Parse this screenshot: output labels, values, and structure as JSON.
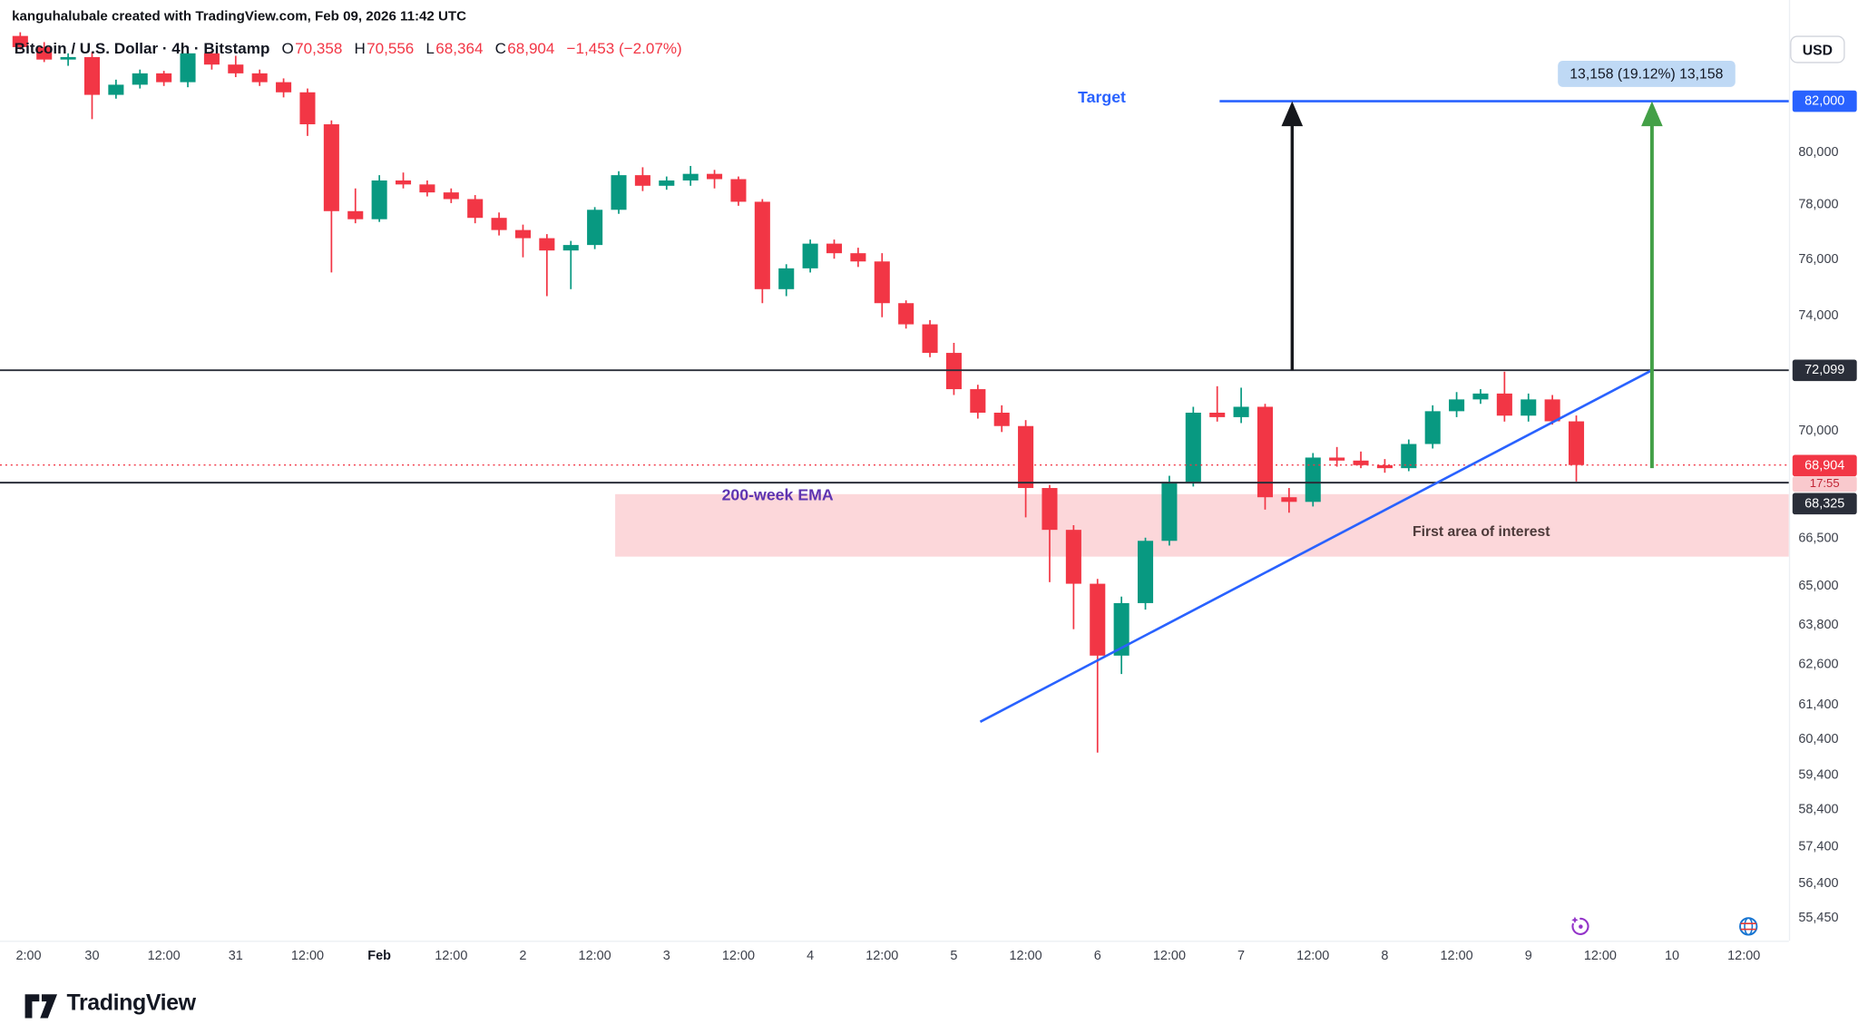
{
  "attribution": "kanguhalubale created with TradingView.com, Feb 09, 2026 11:42 UTC",
  "header": {
    "symbol_line": "Bitcoin / U.S. Dollar · 4h · Bitstamp",
    "ohlc": [
      {
        "k": "O",
        "v": "70,358"
      },
      {
        "k": "H",
        "v": "70,556"
      },
      {
        "k": "L",
        "v": "68,364"
      },
      {
        "k": "C",
        "v": "68,904"
      }
    ],
    "change": "−1,453 (−2.07%)",
    "currency": "USD"
  },
  "annotations": {
    "target_label": "Target",
    "target_badge": "82,000",
    "measure_label": "13,158 (19.12%) 13,158",
    "ema_label": "200-week EMA",
    "zone_label": "First area of interest",
    "level_upper_badge": "72,099",
    "level_lower_badge": "68,325",
    "last_price_badge": "68,904",
    "countdown": "17:55"
  },
  "price_axis_ticks": [
    "80,000",
    "78,000",
    "76,000",
    "74,000",
    "70,000",
    "66,500",
    "65,000",
    "63,800",
    "62,600",
    "61,400",
    "60,400",
    "59,400",
    "58,400",
    "57,400",
    "56,400",
    "55,450"
  ],
  "time_axis_ticks": [
    {
      "label": "2:00",
      "i": 0.35
    },
    {
      "label": "30",
      "i": 3
    },
    {
      "label": "12:00",
      "i": 6
    },
    {
      "label": "31",
      "i": 9
    },
    {
      "label": "12:00",
      "i": 12
    },
    {
      "label": "Feb",
      "i": 15,
      "bold": true
    },
    {
      "label": "12:00",
      "i": 18
    },
    {
      "label": "2",
      "i": 21
    },
    {
      "label": "12:00",
      "i": 24
    },
    {
      "label": "3",
      "i": 27
    },
    {
      "label": "12:00",
      "i": 30
    },
    {
      "label": "4",
      "i": 33
    },
    {
      "label": "12:00",
      "i": 36
    },
    {
      "label": "5",
      "i": 39
    },
    {
      "label": "12:00",
      "i": 42
    },
    {
      "label": "6",
      "i": 45
    },
    {
      "label": "12:00",
      "i": 48
    },
    {
      "label": "7",
      "i": 51
    },
    {
      "label": "12:00",
      "i": 54
    },
    {
      "label": "8",
      "i": 57
    },
    {
      "label": "12:00",
      "i": 60
    },
    {
      "label": "9",
      "i": 63
    },
    {
      "label": "12:00",
      "i": 66
    },
    {
      "label": "10",
      "i": 69
    },
    {
      "label": "12:00",
      "i": 72
    }
  ],
  "footer": {
    "logo_text": "TradingView"
  },
  "icons": {
    "boost": "sparkle-swirl",
    "globe": "globe"
  },
  "chart_data": {
    "type": "candlestick",
    "symbol": "Bitcoin / U.S. Dollar (BTCUSD)",
    "exchange": "Bitstamp",
    "interval": "4h",
    "scale": "log",
    "visible_price_range": [
      55450,
      84900
    ],
    "up_color": "#089981",
    "down_color": "#f23645",
    "candles": [
      [
        "Jan 29 12:00",
        84600,
        84750,
        84050,
        84150
      ],
      [
        "Jan 29 16:00",
        84150,
        84350,
        83550,
        83650
      ],
      [
        "Jan 29 20:00",
        83650,
        83900,
        83400,
        83750
      ],
      [
        "Jan 30 00:00",
        83750,
        83950,
        81300,
        82250
      ],
      [
        "Jan 30 04:00",
        82250,
        82850,
        82100,
        82650
      ],
      [
        "Jan 30 08:00",
        82650,
        83250,
        82500,
        83100
      ],
      [
        "Jan 30 12:00",
        83100,
        83200,
        82600,
        82750
      ],
      [
        "Jan 30 16:00",
        82750,
        84050,
        82550,
        83900
      ],
      [
        "Jan 30 20:00",
        83900,
        84000,
        83250,
        83450
      ],
      [
        "Jan 31 00:00",
        83450,
        83800,
        82950,
        83100
      ],
      [
        "Jan 31 04:00",
        83100,
        83250,
        82600,
        82750
      ],
      [
        "Jan 31 08:00",
        82750,
        82900,
        82150,
        82350
      ],
      [
        "Jan 31 12:00",
        82350,
        82500,
        80650,
        81100
      ],
      [
        "Jan 31 16:00",
        81100,
        81250,
        75550,
        77800
      ],
      [
        "Jan 31 20:00",
        77800,
        78650,
        77350,
        77500
      ],
      [
        "Feb 1 00:00",
        77500,
        79150,
        77400,
        78950
      ],
      [
        "Feb 1 04:00",
        78950,
        79250,
        78650,
        78800
      ],
      [
        "Feb 1 08:00",
        78800,
        78950,
        78350,
        78500
      ],
      [
        "Feb 1 12:00",
        78500,
        78650,
        78100,
        78250
      ],
      [
        "Feb 1 16:00",
        78250,
        78400,
        77350,
        77550
      ],
      [
        "Feb 1 20:00",
        77550,
        77750,
        76900,
        77100
      ],
      [
        "Feb 2 00:00",
        77100,
        77300,
        76100,
        76800
      ],
      [
        "Feb 2 04:00",
        76800,
        76950,
        74700,
        76350
      ],
      [
        "Feb 2 08:00",
        76350,
        76700,
        74950,
        76550
      ],
      [
        "Feb 2 12:00",
        76550,
        77950,
        76400,
        77850
      ],
      [
        "Feb 2 16:00",
        77850,
        79300,
        77700,
        79150
      ],
      [
        "Feb 2 20:00",
        79150,
        79450,
        78550,
        78750
      ],
      [
        "Feb 3 00:00",
        78750,
        79100,
        78600,
        78950
      ],
      [
        "Feb 3 04:00",
        78950,
        79500,
        78750,
        79200
      ],
      [
        "Feb 3 08:00",
        79200,
        79350,
        78650,
        79000
      ],
      [
        "Feb 3 12:00",
        79000,
        79100,
        78000,
        78150
      ],
      [
        "Feb 3 16:00",
        78150,
        78250,
        74450,
        74950
      ],
      [
        "Feb 3 20:00",
        74950,
        75850,
        74700,
        75700
      ],
      [
        "Feb 4 00:00",
        75700,
        76750,
        75550,
        76600
      ],
      [
        "Feb 4 04:00",
        76600,
        76750,
        76050,
        76250
      ],
      [
        "Feb 4 08:00",
        76250,
        76450,
        75750,
        75950
      ],
      [
        "Feb 4 12:00",
        75950,
        76250,
        73950,
        74450
      ],
      [
        "Feb 4 16:00",
        74450,
        74550,
        73550,
        73700
      ],
      [
        "Feb 4 20:00",
        73700,
        73850,
        72550,
        72700
      ],
      [
        "Feb 5 00:00",
        72700,
        73050,
        71250,
        71450
      ],
      [
        "Feb 5 04:00",
        71450,
        71600,
        70450,
        70650
      ],
      [
        "Feb 5 08:00",
        70650,
        70900,
        70000,
        70200
      ],
      [
        "Feb 5 12:00",
        70200,
        70400,
        67200,
        68150
      ],
      [
        "Feb 5 16:00",
        68150,
        68250,
        65150,
        66800
      ],
      [
        "Feb 5 20:00",
        66800,
        66950,
        63700,
        65100
      ],
      [
        "Feb 6 00:00",
        65100,
        65250,
        60050,
        62900
      ],
      [
        "Feb 6 04:00",
        62900,
        64700,
        62350,
        64500
      ],
      [
        "Feb 6 08:00",
        64500,
        66550,
        64300,
        66450
      ],
      [
        "Feb 6 12:00",
        66450,
        68550,
        66300,
        68350
      ],
      [
        "Feb 6 16:00",
        68350,
        70850,
        68200,
        70650
      ],
      [
        "Feb 6 20:00",
        70650,
        71550,
        70350,
        70500
      ],
      [
        "Feb 7 00:00",
        70500,
        71500,
        70300,
        70850
      ],
      [
        "Feb 7 04:00",
        70850,
        70950,
        67450,
        67850
      ],
      [
        "Feb 7 08:00",
        67850,
        68150,
        67350,
        67700
      ],
      [
        "Feb 7 12:00",
        67700,
        69300,
        67550,
        69150
      ],
      [
        "Feb 7 16:00",
        69150,
        69500,
        68850,
        69050
      ],
      [
        "Feb 7 20:00",
        69050,
        69350,
        68800,
        68900
      ],
      [
        "Feb 8 00:00",
        68900,
        69100,
        68650,
        68800
      ],
      [
        "Feb 8 04:00",
        68800,
        69750,
        68700,
        69600
      ],
      [
        "Feb 8 08:00",
        69600,
        70900,
        69450,
        70700
      ],
      [
        "Feb 8 12:00",
        70700,
        71350,
        70500,
        71100
      ],
      [
        "Feb 8 16:00",
        71100,
        71450,
        70950,
        71300
      ],
      [
        "Feb 8 20:00",
        71300,
        72050,
        70350,
        70550
      ],
      [
        "Feb 9 00:00",
        70550,
        71300,
        70350,
        71100
      ],
      [
        "Feb 9 04:00",
        71100,
        71250,
        70250,
        70360
      ],
      [
        "Feb 9 08:00",
        70358,
        70556,
        68364,
        68904
      ]
    ],
    "levels": [
      {
        "price": 72099,
        "label": "72,099",
        "color": "#2a2e39"
      },
      {
        "price": 68325,
        "label": "68,325",
        "color": "#2a2e39"
      }
    ],
    "last_price_line": {
      "price": 68904,
      "color": "#f23645",
      "style": "dotted"
    },
    "target_line": {
      "price": 82000,
      "label": "Target",
      "color": "#2962ff",
      "from_index": 50.1
    },
    "trendline": {
      "from": {
        "index": 40.1,
        "price": 60940
      },
      "to": {
        "index": 68.16,
        "price": 72099
      },
      "color": "#2962ff"
    },
    "zone": {
      "from_index": 25.2,
      "to_index": 73.88,
      "top_price": 67950,
      "bottom_price": 65950,
      "fill": "rgba(242,54,69,0.20)",
      "label": "First area of interest"
    },
    "arrows": [
      {
        "name": "black-arrow",
        "index": 53.13,
        "from_price": 72099,
        "to_price": 82000,
        "color": "#16181d",
        "width": 2.6
      },
      {
        "name": "green-arrow",
        "index": 68.16,
        "from_price": 68800,
        "to_price": 82000,
        "color": "#43a047",
        "width": 3
      }
    ],
    "measure": {
      "value": 13158,
      "percent": 19.12,
      "label": "13,158 (19.12%) 13,158"
    }
  }
}
